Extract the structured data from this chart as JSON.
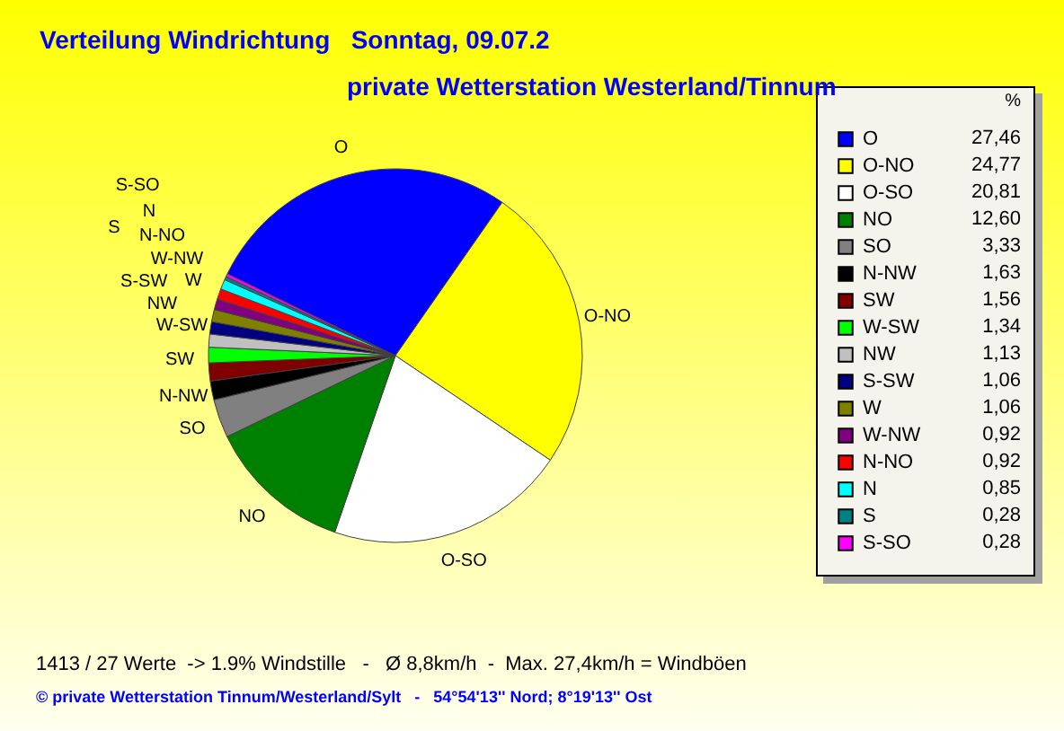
{
  "chart_data": {
    "type": "pie",
    "title": "Verteilung Windrichtung   Sonntag, 09.07.2",
    "subtitle": "private Wetterstation Westerland/Tinnum",
    "legend_title": "%",
    "legend": "right",
    "categories": [
      "O",
      "O-NO",
      "O-SO",
      "NO",
      "SO",
      "N-NW",
      "SW",
      "W-SW",
      "NW",
      "S-SW",
      "W",
      "W-NW",
      "N-NO",
      "N",
      "S",
      "S-SO"
    ],
    "values": [
      27.46,
      24.77,
      20.81,
      12.6,
      3.33,
      1.63,
      1.56,
      1.34,
      1.13,
      1.06,
      1.06,
      0.92,
      0.92,
      0.85,
      0.28,
      0.28
    ],
    "value_labels": [
      "27,46",
      "24,77",
      "20,81",
      "12,60",
      "3,33",
      "1,63",
      "1,56",
      "1,34",
      "1,13",
      "1,06",
      "1,06",
      "0,92",
      "0,92",
      "0,85",
      "0,28",
      "0,28"
    ],
    "colors": [
      "#0000ff",
      "#ffff00",
      "#ffffff",
      "#008000",
      "#808080",
      "#000000",
      "#800000",
      "#00ff00",
      "#c0c0c0",
      "#000080",
      "#808000",
      "#800080",
      "#ff0000",
      "#00ffff",
      "#008080",
      "#ff00ff"
    ],
    "annotations": [
      "1413 / 27 Werte  -> 1.9% Windstille   -   Ø 8,8km/h  -  Max. 27,4km/h = Windböen",
      "© private Wetterstation Tinnum/Westerland/Sylt   -   54°54'13'' Nord; 8°19'13'' Ost"
    ]
  }
}
